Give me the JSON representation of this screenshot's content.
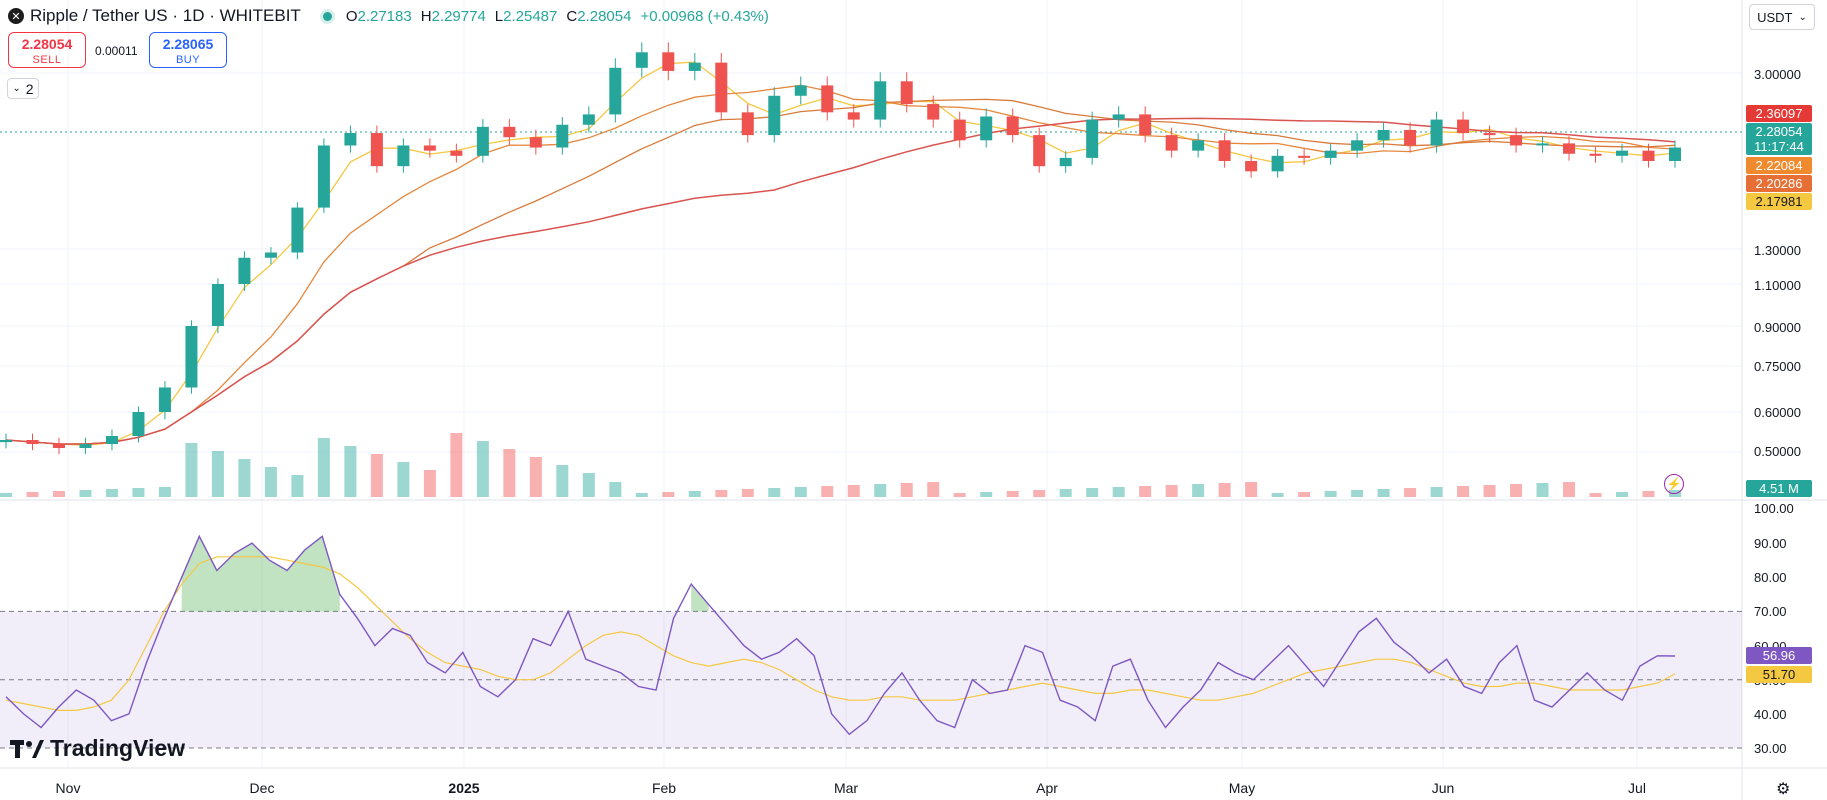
{
  "header": {
    "symbol_title": "Ripple / Tether US · 1D · WHITEBIT",
    "open_label": "O",
    "open": "2.27183",
    "high_label": "H",
    "high": "2.29774",
    "low_label": "L",
    "low": "2.25487",
    "close_label": "C",
    "close": "2.28054",
    "change": "+0.00968 (+0.43%)",
    "status_color": "#26a69a"
  },
  "trade": {
    "sell_price": "2.28054",
    "sell_label": "SELL",
    "spread": "0.00011",
    "buy_price": "2.28065",
    "buy_label": "BUY"
  },
  "indicators_toggle": {
    "count": "2",
    "icon": "chevron-down-icon"
  },
  "currency_select": {
    "value": "USDT"
  },
  "price_tags": {
    "ma1": "2.36097",
    "last_price": "2.28054",
    "countdown": "11:17:44",
    "ma2": "2.22084",
    "ma3": "2.20286",
    "ma4": "2.17981",
    "volume": "4.51 M",
    "rsi": "56.96",
    "rsi_ma": "51.70"
  },
  "colors": {
    "up": "#26a69a",
    "down": "#ef5350",
    "ma_red": "#d9534f",
    "ma_orange": "#e5883e",
    "ma_yellow": "#f5c842",
    "rsi": "#7e57c2",
    "rsi_ma": "#f5c842"
  },
  "logo": {
    "text": "TradingView"
  },
  "chart_data": [
    {
      "type": "candlestick",
      "price_axis_ticks": [
        "3.00000",
        "1.30000",
        "1.10000",
        "0.90000",
        "0.75000",
        "0.60000",
        "0.50000"
      ],
      "time_axis_ticks": [
        "Nov",
        "Dec",
        "2025",
        "Feb",
        "Mar",
        "Apr",
        "May",
        "Jun",
        "Jul"
      ],
      "close_series": [
        0.53,
        0.52,
        0.51,
        0.52,
        0.54,
        0.6,
        0.68,
        0.9,
        1.1,
        1.25,
        1.28,
        1.7,
        2.3,
        2.42,
        2.1,
        2.3,
        2.25,
        2.2,
        2.48,
        2.38,
        2.28,
        2.5,
        2.6,
        3.05,
        3.2,
        3.02,
        3.1,
        2.62,
        2.4,
        2.78,
        2.88,
        2.62,
        2.55,
        2.92,
        2.7,
        2.55,
        2.35,
        2.58,
        2.4,
        2.1,
        2.18,
        2.55,
        2.6,
        2.4,
        2.25,
        2.35,
        2.15,
        2.05,
        2.2,
        2.18,
        2.25,
        2.35,
        2.45,
        2.3,
        2.55,
        2.42,
        2.4,
        2.3,
        2.32,
        2.22,
        2.2,
        2.25,
        2.15,
        2.28
      ],
      "last_price": 2.28054,
      "moving_averages": [
        2.36097,
        2.22084,
        2.20286,
        2.17981
      ],
      "volume_last": "4.51 M"
    },
    {
      "type": "line",
      "name": "RSI",
      "y_axis_ticks": [
        "100.00",
        "90.00",
        "80.00",
        "70.00",
        "60.00",
        "50.00",
        "40.00",
        "30.00"
      ],
      "ylim": [
        30,
        100
      ],
      "upper_band": 70,
      "middle_band": 50,
      "lower_band": 30,
      "values": [
        45,
        40,
        36,
        42,
        47,
        44,
        38,
        40,
        55,
        68,
        80,
        92,
        82,
        87,
        90,
        85,
        82,
        88,
        92,
        75,
        68,
        60,
        65,
        63,
        55,
        52,
        58,
        48,
        45,
        50,
        62,
        60,
        70,
        56,
        54,
        52,
        48,
        47,
        68,
        78,
        72,
        66,
        60,
        56,
        58,
        62,
        57,
        40,
        34,
        38,
        46,
        52,
        44,
        38,
        36,
        50,
        46,
        47,
        60,
        58,
        44,
        42,
        38,
        54,
        56,
        44,
        36,
        42,
        47,
        55,
        52,
        50,
        55,
        60,
        54,
        48,
        56,
        64,
        68,
        61,
        57,
        52,
        56,
        48,
        46,
        55,
        60,
        44,
        42,
        47,
        52,
        47,
        44,
        54,
        57,
        56.96
      ],
      "ma_values": [
        44,
        43,
        42,
        41,
        41,
        42,
        44,
        50,
        60,
        70,
        78,
        84,
        86,
        86,
        86,
        86,
        85,
        84,
        83,
        81,
        77,
        72,
        67,
        62,
        58,
        55,
        54,
        53,
        51,
        50,
        50,
        52,
        56,
        60,
        63,
        64,
        63,
        60,
        57,
        55,
        54,
        55,
        56,
        55,
        53,
        50,
        47,
        45,
        44,
        44,
        45,
        45,
        44,
        44,
        44,
        45,
        46,
        47,
        48,
        49,
        48,
        47,
        46,
        46,
        47,
        47,
        46,
        45,
        44,
        44,
        45,
        46,
        48,
        50,
        52,
        53,
        54,
        55,
        56,
        56,
        55,
        53,
        51,
        49,
        48,
        48,
        49,
        49,
        48,
        47,
        47,
        47,
        47,
        48,
        49,
        51.7
      ],
      "last": 56.96,
      "ma_last": 51.7
    }
  ]
}
